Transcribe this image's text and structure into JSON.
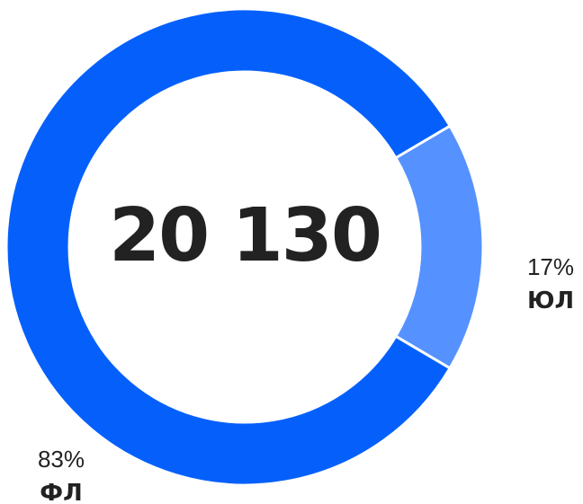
{
  "chart_data": {
    "type": "pie",
    "variant": "donut",
    "center_label": "20 130",
    "slices": [
      {
        "name": "ЮЛ",
        "percent_label": "17%",
        "value": 17,
        "color": "#5592FF"
      },
      {
        "name": "ФЛ",
        "percent_label": "83%",
        "value": 83,
        "color": "#0560FB"
      }
    ]
  }
}
